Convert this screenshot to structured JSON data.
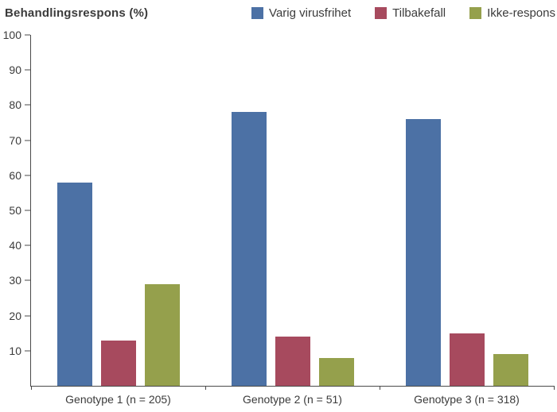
{
  "header": {
    "title": "Behandlingsrespons  (%)"
  },
  "chart_data": {
    "type": "bar",
    "title": "Behandlingsrespons (%)",
    "categories": [
      "Genotype 1 (n = 205)",
      "Genotype 2 (n = 51)",
      "Genotype 3 (n = 318)"
    ],
    "series": [
      {
        "name": "Varig virusfrihet",
        "color": "#4c71a5",
        "values": [
          58,
          78,
          76
        ]
      },
      {
        "name": "Tilbakefall",
        "color": "#a74a5e",
        "values": [
          13,
          14,
          15
        ]
      },
      {
        "name": "Ikke-respons",
        "color": "#95a04c",
        "values": [
          29,
          8,
          9
        ]
      }
    ],
    "xlabel": "",
    "ylabel": "Behandlingsrespons (%)",
    "ylim": [
      0,
      100
    ],
    "yticks": [
      10,
      20,
      30,
      40,
      50,
      60,
      70,
      80,
      90,
      100
    ],
    "grid": false,
    "legend_position": "top-right",
    "axis_color": "#4a4a4a",
    "text_color": "#3b3b3b"
  }
}
